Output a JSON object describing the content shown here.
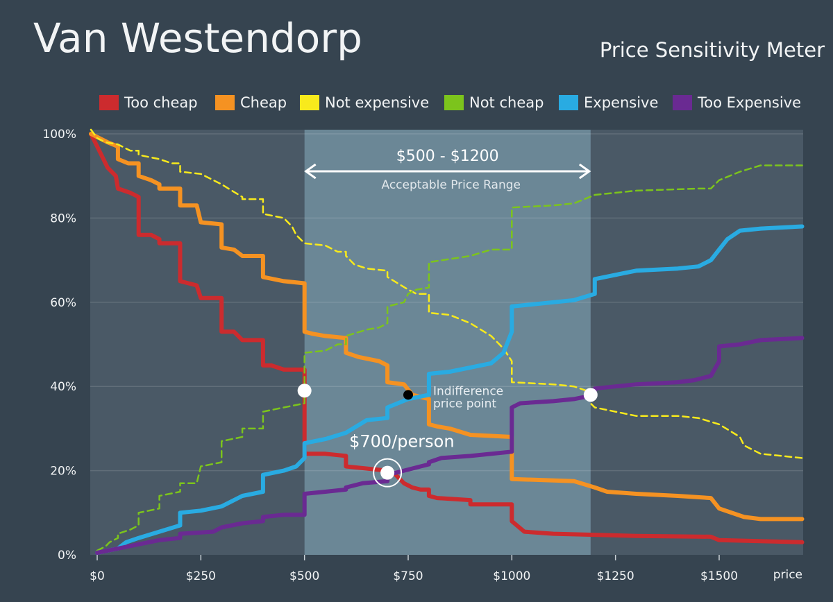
{
  "header": {
    "title": "Van Westendorp",
    "subtitle": "Price Sensitivity Meter"
  },
  "legend": [
    {
      "label": "Too cheap",
      "color": "#cc2b2e"
    },
    {
      "label": "Cheap",
      "color": "#f59222"
    },
    {
      "label": "Not expensive",
      "color": "#f8ea1c"
    },
    {
      "label": "Not cheap",
      "color": "#7cc41c"
    },
    {
      "label": "Expensive",
      "color": "#29abe2"
    },
    {
      "label": "Too Expensive",
      "color": "#6a2a92"
    }
  ],
  "range": {
    "label": "$500 - $1200",
    "sublabel": "Acceptable Price Range",
    "from": 500,
    "to": 1190
  },
  "annotations": {
    "indifference_line1": "Indifference",
    "indifference_line2": "price point",
    "optimal_label": "$700/person"
  },
  "colors": {
    "background": "#364450",
    "plot_area": "#4a5966",
    "acceptable_band": "#6b8796"
  },
  "chart_data": {
    "type": "line",
    "title": "Van Westendorp",
    "subtitle": "Price Sensitivity Meter",
    "xlabel": "price",
    "ylabel": "",
    "xlim": [
      -25,
      1700
    ],
    "ylim": [
      0,
      100
    ],
    "x_ticks": [
      {
        "value": 0,
        "label": "$0"
      },
      {
        "value": 250,
        "label": "$250"
      },
      {
        "value": 500,
        "label": "$500"
      },
      {
        "value": 750,
        "label": "$750"
      },
      {
        "value": 1000,
        "label": "$1000"
      },
      {
        "value": 1250,
        "label": "$1250"
      },
      {
        "value": 1500,
        "label": "$1500"
      }
    ],
    "y_ticks": [
      {
        "value": 0,
        "label": "0%"
      },
      {
        "value": 20,
        "label": "20%"
      },
      {
        "value": 40,
        "label": "40%"
      },
      {
        "value": 60,
        "label": "60%"
      },
      {
        "value": 80,
        "label": "80%"
      },
      {
        "value": 100,
        "label": "100%"
      }
    ],
    "grid": "horizontal",
    "legend_position": "top",
    "series": [
      {
        "name": "Too cheap",
        "color": "#cc2b2e",
        "dashed": false,
        "points": [
          [
            -15,
            100
          ],
          [
            0,
            97
          ],
          [
            15,
            94
          ],
          [
            25,
            92
          ],
          [
            45,
            90
          ],
          [
            50,
            87
          ],
          [
            80,
            86
          ],
          [
            100,
            85
          ],
          [
            100,
            76
          ],
          [
            130,
            76
          ],
          [
            150,
            75
          ],
          [
            150,
            74
          ],
          [
            200,
            74
          ],
          [
            200,
            65
          ],
          [
            240,
            64
          ],
          [
            250,
            61
          ],
          [
            300,
            61
          ],
          [
            300,
            53
          ],
          [
            330,
            53
          ],
          [
            350,
            51
          ],
          [
            400,
            51
          ],
          [
            400,
            45
          ],
          [
            420,
            45
          ],
          [
            450,
            44
          ],
          [
            500,
            44
          ],
          [
            500,
            24
          ],
          [
            550,
            24
          ],
          [
            600,
            23.5
          ],
          [
            600,
            21
          ],
          [
            700,
            20
          ],
          [
            720,
            19
          ],
          [
            740,
            17
          ],
          [
            760,
            16
          ],
          [
            780,
            15.5
          ],
          [
            800,
            15.5
          ],
          [
            800,
            14
          ],
          [
            820,
            13.5
          ],
          [
            900,
            13
          ],
          [
            900,
            12
          ],
          [
            1000,
            12
          ],
          [
            1000,
            8
          ],
          [
            1030,
            5.5
          ],
          [
            1100,
            5
          ],
          [
            1300,
            4.5
          ],
          [
            1480,
            4.3
          ],
          [
            1500,
            3.5
          ],
          [
            1700,
            3
          ]
        ]
      },
      {
        "name": "Cheap",
        "color": "#f59222",
        "dashed": false,
        "points": [
          [
            -15,
            100
          ],
          [
            25,
            98
          ],
          [
            50,
            97
          ],
          [
            50,
            94
          ],
          [
            75,
            93
          ],
          [
            100,
            93
          ],
          [
            100,
            90
          ],
          [
            130,
            89
          ],
          [
            150,
            88
          ],
          [
            150,
            87
          ],
          [
            200,
            87
          ],
          [
            200,
            83
          ],
          [
            240,
            83
          ],
          [
            250,
            79
          ],
          [
            300,
            78.5
          ],
          [
            300,
            73
          ],
          [
            330,
            72.5
          ],
          [
            350,
            71
          ],
          [
            400,
            71
          ],
          [
            400,
            66
          ],
          [
            450,
            65
          ],
          [
            500,
            64.5
          ],
          [
            500,
            53
          ],
          [
            520,
            52.5
          ],
          [
            550,
            52
          ],
          [
            600,
            51.5
          ],
          [
            600,
            48
          ],
          [
            630,
            47
          ],
          [
            680,
            46
          ],
          [
            700,
            45
          ],
          [
            700,
            41
          ],
          [
            740,
            40.5
          ],
          [
            760,
            38
          ],
          [
            800,
            37
          ],
          [
            800,
            31
          ],
          [
            820,
            30.5
          ],
          [
            850,
            30
          ],
          [
            900,
            28.5
          ],
          [
            1000,
            28
          ],
          [
            1000,
            18
          ],
          [
            1150,
            17.5
          ],
          [
            1200,
            16
          ],
          [
            1230,
            15
          ],
          [
            1300,
            14.5
          ],
          [
            1400,
            14
          ],
          [
            1480,
            13.5
          ],
          [
            1500,
            11
          ],
          [
            1560,
            9
          ],
          [
            1600,
            8.5
          ],
          [
            1700,
            8.5
          ]
        ]
      },
      {
        "name": "Not expensive",
        "color": "#f8ea1c",
        "dashed": true,
        "points": [
          [
            -15,
            101
          ],
          [
            0,
            99
          ],
          [
            20,
            98
          ],
          [
            50,
            97.5
          ],
          [
            80,
            96
          ],
          [
            100,
            96
          ],
          [
            100,
            95
          ],
          [
            150,
            94
          ],
          [
            180,
            93
          ],
          [
            200,
            93
          ],
          [
            200,
            91
          ],
          [
            250,
            90.5
          ],
          [
            280,
            89
          ],
          [
            300,
            88
          ],
          [
            350,
            85
          ],
          [
            350,
            84.5
          ],
          [
            400,
            84.5
          ],
          [
            400,
            81
          ],
          [
            450,
            80
          ],
          [
            470,
            78
          ],
          [
            480,
            76
          ],
          [
            500,
            74
          ],
          [
            550,
            73.5
          ],
          [
            580,
            72
          ],
          [
            600,
            72
          ],
          [
            600,
            71
          ],
          [
            620,
            69
          ],
          [
            650,
            68
          ],
          [
            700,
            67.5
          ],
          [
            700,
            66
          ],
          [
            750,
            63
          ],
          [
            770,
            62
          ],
          [
            800,
            62
          ],
          [
            800,
            57.5
          ],
          [
            850,
            57
          ],
          [
            900,
            55
          ],
          [
            950,
            52
          ],
          [
            980,
            49
          ],
          [
            1000,
            46
          ],
          [
            1000,
            41
          ],
          [
            1100,
            40.5
          ],
          [
            1150,
            40
          ],
          [
            1180,
            39
          ],
          [
            1190,
            36
          ],
          [
            1200,
            35
          ],
          [
            1250,
            34
          ],
          [
            1300,
            33
          ],
          [
            1400,
            33
          ],
          [
            1450,
            32.5
          ],
          [
            1500,
            31
          ],
          [
            1550,
            28
          ],
          [
            1560,
            26
          ],
          [
            1600,
            24
          ],
          [
            1700,
            23
          ]
        ]
      },
      {
        "name": "Not cheap",
        "color": "#7cc41c",
        "dashed": true,
        "points": [
          [
            0,
            1
          ],
          [
            20,
            2
          ],
          [
            30,
            3
          ],
          [
            50,
            4
          ],
          [
            50,
            5
          ],
          [
            80,
            6
          ],
          [
            100,
            7
          ],
          [
            100,
            10
          ],
          [
            150,
            11
          ],
          [
            150,
            14
          ],
          [
            200,
            15
          ],
          [
            200,
            17
          ],
          [
            240,
            17
          ],
          [
            250,
            21
          ],
          [
            300,
            22
          ],
          [
            300,
            27
          ],
          [
            350,
            28
          ],
          [
            350,
            30
          ],
          [
            400,
            30
          ],
          [
            400,
            34
          ],
          [
            450,
            35
          ],
          [
            500,
            36
          ],
          [
            500,
            48
          ],
          [
            550,
            48.5
          ],
          [
            580,
            50
          ],
          [
            600,
            50
          ],
          [
            600,
            52
          ],
          [
            650,
            53.5
          ],
          [
            680,
            54
          ],
          [
            700,
            55
          ],
          [
            700,
            59
          ],
          [
            740,
            60
          ],
          [
            750,
            62
          ],
          [
            770,
            63
          ],
          [
            800,
            63.5
          ],
          [
            800,
            69.5
          ],
          [
            900,
            71
          ],
          [
            950,
            72.5
          ],
          [
            1000,
            72.5
          ],
          [
            1000,
            82.5
          ],
          [
            1100,
            83
          ],
          [
            1150,
            83.5
          ],
          [
            1200,
            85.5
          ],
          [
            1300,
            86.5
          ],
          [
            1450,
            87
          ],
          [
            1480,
            87
          ],
          [
            1500,
            89
          ],
          [
            1550,
            91
          ],
          [
            1600,
            92.5
          ],
          [
            1700,
            92.5
          ]
        ]
      },
      {
        "name": "Expensive",
        "color": "#29abe2",
        "dashed": false,
        "points": [
          [
            0,
            0.5
          ],
          [
            50,
            1.5
          ],
          [
            70,
            3
          ],
          [
            100,
            4
          ],
          [
            150,
            5.5
          ],
          [
            200,
            7
          ],
          [
            200,
            10
          ],
          [
            250,
            10.5
          ],
          [
            300,
            11.5
          ],
          [
            350,
            14
          ],
          [
            400,
            15
          ],
          [
            400,
            19
          ],
          [
            450,
            20
          ],
          [
            480,
            21
          ],
          [
            500,
            23
          ],
          [
            500,
            26.5
          ],
          [
            550,
            27.5
          ],
          [
            600,
            29
          ],
          [
            650,
            32
          ],
          [
            700,
            32.5
          ],
          [
            700,
            35
          ],
          [
            750,
            37
          ],
          [
            800,
            38
          ],
          [
            800,
            43
          ],
          [
            850,
            43.5
          ],
          [
            900,
            44.5
          ],
          [
            950,
            45.5
          ],
          [
            980,
            48
          ],
          [
            1000,
            53
          ],
          [
            1000,
            59
          ],
          [
            1100,
            60
          ],
          [
            1150,
            60.5
          ],
          [
            1200,
            62
          ],
          [
            1200,
            65.5
          ],
          [
            1250,
            66.5
          ],
          [
            1300,
            67.5
          ],
          [
            1400,
            68
          ],
          [
            1450,
            68.5
          ],
          [
            1480,
            70
          ],
          [
            1500,
            72.5
          ],
          [
            1520,
            75
          ],
          [
            1550,
            77
          ],
          [
            1600,
            77.5
          ],
          [
            1700,
            78
          ]
        ]
      },
      {
        "name": "Too Expensive",
        "color": "#6a2a92",
        "dashed": false,
        "points": [
          [
            0,
            0.5
          ],
          [
            50,
            1.5
          ],
          [
            100,
            2.5
          ],
          [
            150,
            3.5
          ],
          [
            200,
            4
          ],
          [
            200,
            5
          ],
          [
            280,
            5.5
          ],
          [
            300,
            6.5
          ],
          [
            350,
            7.5
          ],
          [
            400,
            8
          ],
          [
            400,
            9
          ],
          [
            450,
            9.5
          ],
          [
            500,
            9.5
          ],
          [
            500,
            14.5
          ],
          [
            550,
            15
          ],
          [
            600,
            15.5
          ],
          [
            600,
            16
          ],
          [
            640,
            17
          ],
          [
            700,
            17.5
          ],
          [
            700,
            19
          ],
          [
            740,
            20
          ],
          [
            780,
            21
          ],
          [
            800,
            21.5
          ],
          [
            800,
            22
          ],
          [
            830,
            23
          ],
          [
            900,
            23.5
          ],
          [
            1000,
            24.5
          ],
          [
            1000,
            35
          ],
          [
            1020,
            36
          ],
          [
            1100,
            36.5
          ],
          [
            1150,
            37
          ],
          [
            1200,
            38
          ],
          [
            1200,
            39.5
          ],
          [
            1250,
            40
          ],
          [
            1300,
            40.5
          ],
          [
            1400,
            41
          ],
          [
            1440,
            41.5
          ],
          [
            1480,
            42.5
          ],
          [
            1500,
            46
          ],
          [
            1500,
            49.5
          ],
          [
            1550,
            50
          ],
          [
            1600,
            51
          ],
          [
            1700,
            51.5
          ]
        ]
      }
    ],
    "markers": [
      {
        "name": "point-500",
        "x": 500,
        "y": 39
      },
      {
        "name": "indifference-point",
        "x": 750,
        "y": 38
      },
      {
        "name": "optimal-point",
        "x": 700,
        "y": 19.5
      },
      {
        "name": "point-1190",
        "x": 1190,
        "y": 38
      }
    ]
  }
}
